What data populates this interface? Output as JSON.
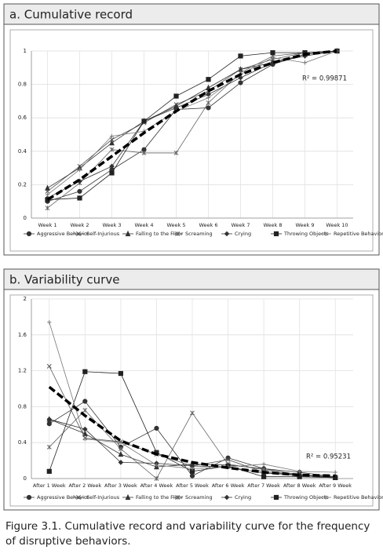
{
  "chart_data": [
    {
      "type": "line",
      "title": "a. Cumulative record",
      "categories": [
        "Week 1",
        "Week 2",
        "Week 3",
        "Week 4",
        "Week 5",
        "Week 6",
        "Week 7",
        "Week 8",
        "Week 9",
        "Week 10"
      ],
      "ylim": [
        0,
        1
      ],
      "yticks": [
        0,
        0.2,
        0.4,
        0.6,
        0.8,
        1
      ],
      "grid": true,
      "annotation": "R² = 0.99871",
      "series": [
        {
          "name": "Aggressive Behavior",
          "color": "#333333",
          "marker": "circle",
          "values": [
            0.1,
            0.16,
            0.29,
            0.41,
            0.65,
            0.66,
            0.81,
            0.92,
            0.98,
            1.0
          ]
        },
        {
          "name": "Self-Injurious",
          "color": "#555555",
          "marker": "x",
          "values": [
            0.16,
            0.31,
            0.47,
            0.57,
            0.68,
            0.76,
            0.89,
            0.95,
            0.99,
            1.0
          ]
        },
        {
          "name": "Falling to the Floor",
          "color": "#333333",
          "marker": "triangle",
          "values": [
            0.18,
            0.3,
            0.45,
            0.58,
            0.67,
            0.78,
            0.89,
            0.93,
            0.98,
            1.0
          ]
        },
        {
          "name": "Screaming",
          "color": "#666666",
          "marker": "star",
          "values": [
            0.06,
            0.21,
            0.41,
            0.39,
            0.39,
            0.69,
            0.87,
            0.97,
            0.99,
            1.0
          ]
        },
        {
          "name": "Crying",
          "color": "#333333",
          "marker": "diamond",
          "values": [
            0.12,
            0.22,
            0.31,
            0.58,
            0.66,
            0.74,
            0.84,
            0.93,
            0.97,
            1.0
          ]
        },
        {
          "name": "Throwing Objects",
          "color": "#222222",
          "marker": "square",
          "values": [
            0.11,
            0.12,
            0.27,
            0.58,
            0.73,
            0.83,
            0.97,
            0.99,
            0.99,
            1.0
          ]
        },
        {
          "name": "Repetitive Behavior",
          "color": "#777777",
          "marker": "plus",
          "values": [
            0.14,
            0.29,
            0.49,
            0.52,
            0.64,
            0.72,
            0.86,
            0.96,
            0.93,
            1.0
          ]
        }
      ],
      "trendline": {
        "color": "#000000",
        "values": [
          0.11,
          0.23,
          0.37,
          0.51,
          0.64,
          0.76,
          0.86,
          0.93,
          0.98,
          1.0
        ]
      }
    },
    {
      "type": "line",
      "title": "b. Variability curve",
      "categories": [
        "After 1 Week",
        "After 2 Week",
        "After 3 Week",
        "After 4 Week",
        "After 5 Week",
        "After 6 Week",
        "After 7 Week",
        "After 8 Week",
        "After 9 Week"
      ],
      "ylim": [
        0,
        2
      ],
      "yticks": [
        0,
        0.4,
        0.8,
        1.2,
        1.6,
        2
      ],
      "grid": true,
      "annotation": "R² = 0.95231",
      "series": [
        {
          "name": "Aggressive Behavior",
          "color": "#333333",
          "marker": "circle",
          "values": [
            0.61,
            0.86,
            0.35,
            0.56,
            0.03,
            0.23,
            0.11,
            0.07,
            0.02
          ]
        },
        {
          "name": "Self-Injurious",
          "color": "#555555",
          "marker": "x",
          "values": [
            1.25,
            0.45,
            0.41,
            0.27,
            0.14,
            0.21,
            0.07,
            0.04,
            0.01
          ]
        },
        {
          "name": "Falling to the Floor",
          "color": "#333333",
          "marker": "triangle",
          "values": [
            0.66,
            0.5,
            0.27,
            0.13,
            0.16,
            0.15,
            0.11,
            0.04,
            0.01
          ]
        },
        {
          "name": "Screaming",
          "color": "#666666",
          "marker": "star",
          "values": [
            0.35,
            0.76,
            0.33,
            0.0,
            0.73,
            0.16,
            0.1,
            0.02,
            0.01
          ]
        },
        {
          "name": "Crying",
          "color": "#333333",
          "marker": "diamond",
          "values": [
            0.66,
            0.55,
            0.18,
            0.17,
            0.14,
            0.13,
            0.06,
            0.04,
            0.02
          ]
        },
        {
          "name": "Throwing Objects",
          "color": "#222222",
          "marker": "square",
          "values": [
            0.08,
            1.19,
            1.17,
            0.29,
            0.08,
            0.14,
            0.02,
            0.02,
            0.01
          ]
        },
        {
          "name": "Repetitive Behavior",
          "color": "#777777",
          "marker": "plus",
          "values": [
            1.74,
            0.44,
            0.4,
            0.15,
            0.11,
            0.13,
            0.16,
            0.08,
            0.07
          ]
        }
      ],
      "trendline": {
        "color": "#000000",
        "values": [
          1.02,
          0.7,
          0.42,
          0.27,
          0.18,
          0.12,
          0.07,
          0.04,
          0.03
        ]
      }
    }
  ],
  "caption": "Figure 3.1. Cumulative record and variability curve for the frequency of disruptive behaviors."
}
